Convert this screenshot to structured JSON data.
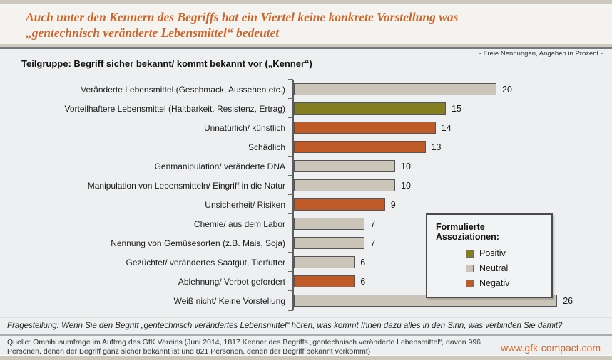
{
  "header": {
    "title_line1": "Auch unter den Kennern des Begriffs hat ein Viertel  keine konkrete Vorstellung was",
    "title_line2": "„gentechnisch veränderte Lebensmittel“ bedeutet",
    "meta_note": "- Freie Nennungen, Angaben in Prozent -",
    "subtitle": "Teilgruppe: Begriff sicher bekannt/ kommt bekannt vor („Kenner“)"
  },
  "chart_data": {
    "type": "bar",
    "orientation": "horizontal",
    "unit": "percent",
    "xlim": [
      0,
      28
    ],
    "categories": [
      "Veränderte Lebensmittel (Geschmack, Aussehen etc.)",
      "Vorteilhaftere Lebensmittel (Haltbarkeit, Resistenz, Ertrag)",
      "Unnatürlich/ künstlich",
      "Schädlich",
      "Genmanipulation/ veränderte DNA",
      "Manipulation von Lebensmitteln/ Eingriff in die Natur",
      "Unsicherheit/ Risiken",
      "Chemie/ aus dem Labor",
      "Nennung von Gemüsesorten (z.B. Mais, Soja)",
      "Gezüchtet/ verändertes Saatgut, Tierfutter",
      "Ablehnung/ Verbot gefordert",
      "Weiß nicht/ Keine Vorstellung"
    ],
    "values": [
      20,
      15,
      14,
      13,
      10,
      10,
      9,
      7,
      7,
      6,
      6,
      26
    ],
    "sentiments": [
      "neutral",
      "positiv",
      "negativ",
      "negativ",
      "neutral",
      "neutral",
      "negativ",
      "neutral",
      "neutral",
      "neutral",
      "negativ",
      "neutral"
    ],
    "colors": {
      "positiv": "#857e20",
      "neutral": "#cbc5b9",
      "negativ": "#bf5b28"
    },
    "legend_position": "right-inside",
    "grid": false
  },
  "legend": {
    "title": "Formulierte Assoziationen:",
    "items": [
      {
        "key": "positiv",
        "label": "Positiv"
      },
      {
        "key": "neutral",
        "label": "Neutral"
      },
      {
        "key": "negativ",
        "label": "Negativ"
      }
    ]
  },
  "footer": {
    "question": "Fragestellung: Wenn Sie den Begriff „gentechnisch verändertes Lebensmittel“ hören, was kommt Ihnen dazu alles in den Sinn, was verbinden Sie damit?",
    "source": "Quelle: Omnibusumfrage im Auftrag des GfK Vereins (Juni 2014, 1817 Kenner des Begriffs „gentechnisch veränderte Lebensmittel“, davon 996 Personen, denen der Begriff ganz sicher bekannt ist und 821 Personen, denen der Begriff bekannt vorkommt)",
    "website": "www.gfk-compact.com"
  }
}
